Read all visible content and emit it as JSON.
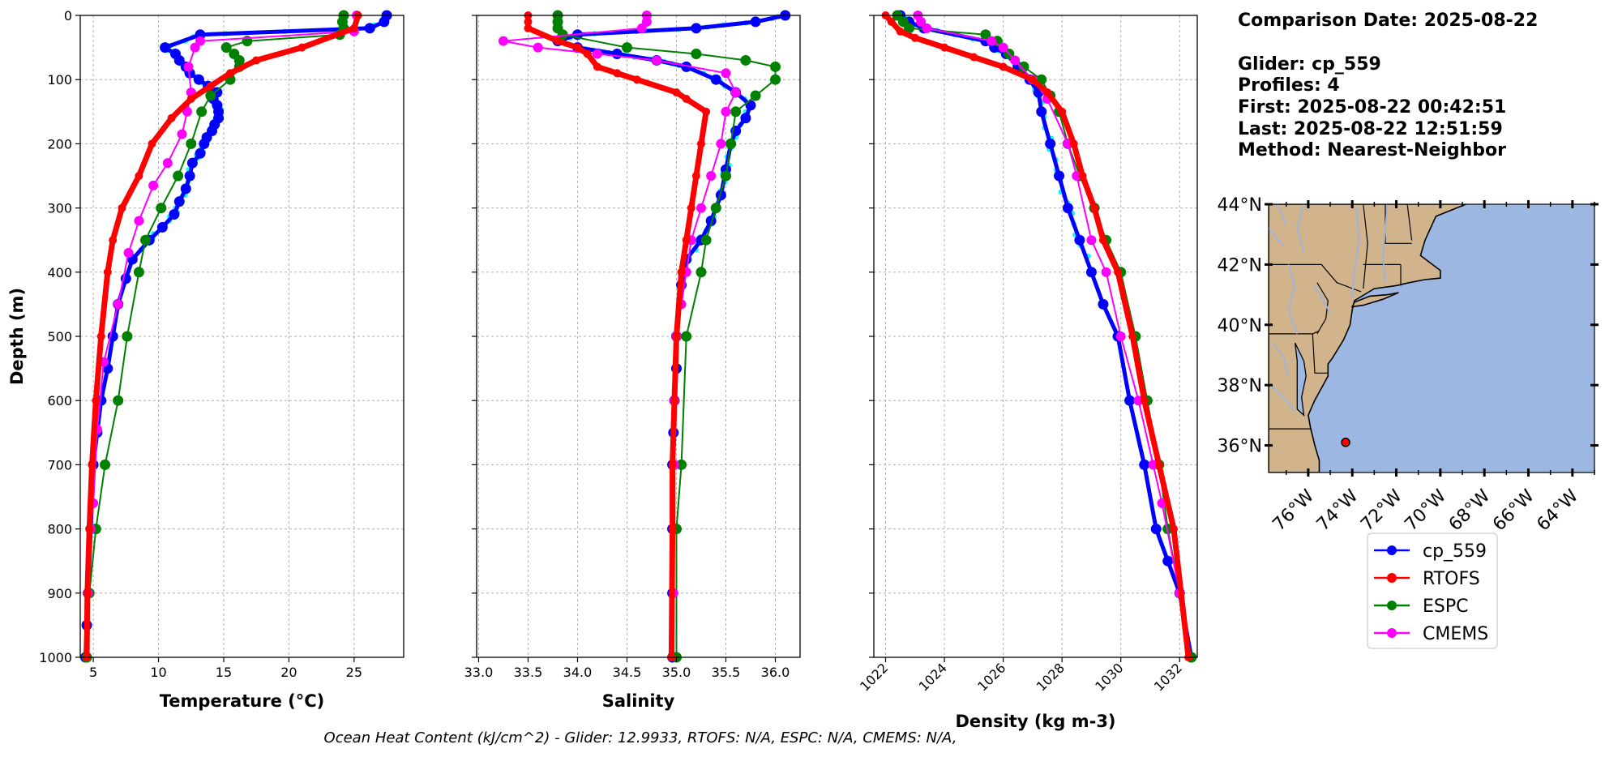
{
  "info": {
    "comparison_date": "Comparison Date: 2025-08-22",
    "glider": "Glider: cp_559",
    "profiles": "Profiles: 4",
    "first": "First: 2025-08-22 00:42:51",
    "last": "Last: 2025-08-22 12:51:59",
    "method": "Method: Nearest-Neighbor"
  },
  "footer": "Ocean Heat Content (kJ/cm^2) - Glider: 12.9933,  RTOFS: N/A,  ESPC: N/A,  CMEMS: N/A,",
  "colors": {
    "cp_559": "#0000ff",
    "RTOFS": "#ff0000",
    "ESPC": "#008000",
    "CMEMS": "#ff00ff",
    "glider_raw": "#00ffff",
    "land": "#d2b48c",
    "ocean": "#9cb8e2",
    "rivers": "#9fb4d6"
  },
  "chart_data": [
    {
      "type": "line",
      "xlabel": "Temperature (°C)",
      "ylabel": "Depth (m)",
      "xlim": [
        4,
        28.8
      ],
      "ylim": [
        1000,
        0
      ],
      "xticks": [
        5,
        10,
        15,
        20,
        25
      ],
      "yticks": [
        0,
        100,
        200,
        300,
        400,
        500,
        600,
        700,
        800,
        900,
        1000
      ],
      "grid": true,
      "series": [
        {
          "name": "cp_559",
          "x": [
            27.5,
            27.3,
            26.2,
            13.2,
            10.5,
            11.3,
            11.6,
            12.1,
            12.4,
            13.1,
            13.8,
            14.5,
            14.2,
            14.5,
            14.6,
            14.6,
            14.3,
            14.1,
            13.7,
            13.5,
            13.2,
            12.6,
            12.4,
            12.1,
            11.6,
            11.2,
            10.3,
            9.3,
            8.0,
            7.5,
            6.9,
            6.5,
            6.1,
            5.6,
            5.3,
            5.0,
            4.8,
            4.6,
            4.5,
            4.4
          ],
          "y": [
            0,
            10,
            20,
            30,
            50,
            60,
            70,
            80,
            90,
            100,
            110,
            120,
            130,
            140,
            150,
            160,
            170,
            180,
            190,
            200,
            215,
            230,
            250,
            270,
            290,
            310,
            330,
            350,
            380,
            410,
            450,
            500,
            550,
            600,
            650,
            700,
            800,
            900,
            950,
            1000
          ]
        },
        {
          "name": "RTOFS",
          "x": [
            25.3,
            25.0,
            21.0,
            17.5,
            15.5,
            14.0,
            12.5,
            11.0,
            9.5,
            8.5,
            7.2,
            6.5,
            6.1,
            5.6,
            5.2,
            4.9,
            4.7,
            4.55,
            4.5
          ],
          "y": [
            0,
            20,
            50,
            70,
            90,
            110,
            130,
            160,
            200,
            250,
            300,
            350,
            400,
            500,
            600,
            700,
            800,
            900,
            1000
          ]
        },
        {
          "name": "ESPC",
          "x": [
            24.2,
            24.1,
            24.2,
            23.9,
            16.8,
            15.2,
            15.8,
            16.2,
            16.2,
            15.5,
            14.0,
            13.3,
            12.5,
            11.5,
            10.2,
            9.0,
            8.5,
            7.6,
            6.9,
            5.9,
            5.2,
            4.7,
            4.5
          ],
          "y": [
            0,
            10,
            20,
            30,
            40,
            50,
            60,
            70,
            80,
            100,
            125,
            150,
            200,
            250,
            300,
            350,
            400,
            500,
            600,
            700,
            800,
            900,
            1000
          ]
        },
        {
          "name": "CMEMS",
          "x": [
            25.2,
            25.0,
            13.2,
            12.8,
            12.3,
            12.5,
            12.2,
            11.8,
            10.7,
            9.6,
            8.5,
            7.7,
            6.9,
            5.8,
            5.3,
            5.0,
            4.8,
            4.6
          ],
          "y": [
            0,
            25,
            40,
            50,
            80,
            120,
            150,
            185,
            230,
            265,
            320,
            370,
            450,
            540,
            645,
            760,
            800,
            900
          ]
        }
      ]
    },
    {
      "type": "line",
      "xlabel": "Salinity",
      "xlim": [
        32.98,
        36.25
      ],
      "ylim": [
        1000,
        0
      ],
      "xticks": [
        33.0,
        33.5,
        34.0,
        34.5,
        35.0,
        35.5,
        36.0
      ],
      "grid": true,
      "series": [
        {
          "name": "cp_559",
          "x": [
            36.1,
            35.8,
            35.2,
            34.0,
            33.8,
            34.0,
            34.4,
            34.8,
            35.1,
            35.4,
            35.6,
            35.75,
            35.7,
            35.6,
            35.55,
            35.5,
            35.45,
            35.35,
            35.25,
            35.1,
            35.05,
            35.0,
            35.0,
            34.98,
            34.97,
            34.96,
            34.96,
            34.96,
            34.96
          ],
          "y": [
            0,
            10,
            20,
            30,
            40,
            50,
            60,
            70,
            80,
            100,
            120,
            140,
            160,
            180,
            200,
            240,
            280,
            320,
            350,
            380,
            420,
            500,
            550,
            600,
            650,
            700,
            800,
            900,
            1000
          ]
        },
        {
          "name": "RTOFS",
          "x": [
            33.5,
            33.5,
            33.5,
            33.8,
            34.0,
            34.1,
            34.2,
            34.4,
            34.6,
            35.0,
            35.1,
            35.3,
            35.25,
            35.2,
            35.15,
            35.1,
            35.05,
            35.0,
            34.98,
            34.96,
            34.96,
            34.95
          ],
          "y": [
            0,
            10,
            20,
            40,
            50,
            60,
            80,
            90,
            100,
            120,
            130,
            150,
            200,
            250,
            300,
            350,
            400,
            500,
            600,
            700,
            800,
            1000
          ]
        },
        {
          "name": "ESPC",
          "x": [
            33.8,
            33.8,
            33.8,
            33.85,
            34.5,
            35.2,
            35.7,
            36.0,
            36.0,
            35.8,
            35.6,
            35.55,
            35.5,
            35.4,
            35.3,
            35.25,
            35.1,
            35.05,
            35.0,
            35.0
          ],
          "y": [
            0,
            10,
            20,
            30,
            50,
            60,
            70,
            80,
            100,
            125,
            150,
            200,
            250,
            300,
            350,
            400,
            500,
            700,
            800,
            1000
          ]
        },
        {
          "name": "CMEMS",
          "x": [
            34.7,
            34.7,
            34.65,
            33.25,
            33.6,
            34.2,
            34.8,
            35.5,
            35.6,
            35.5,
            35.45,
            35.35,
            35.25,
            35.15,
            35.1,
            35.05,
            35.0,
            34.98,
            34.98,
            34.97
          ],
          "y": [
            0,
            10,
            20,
            40,
            50,
            60,
            70,
            90,
            120,
            150,
            200,
            250,
            300,
            350,
            400,
            450,
            500,
            600,
            700,
            900
          ]
        }
      ]
    },
    {
      "type": "line",
      "xlabel": "Density (kg m-3)",
      "xlim": [
        1021.6,
        1032.6
      ],
      "ylim": [
        1000,
        0
      ],
      "xticks": [
        1022,
        1024,
        1026,
        1028,
        1030,
        1032
      ],
      "grid": true,
      "series": [
        {
          "name": "cp_559",
          "x": [
            1022.5,
            1022.8,
            1023.3,
            1025.4,
            1025.7,
            1026.1,
            1026.5,
            1026.9,
            1027.2,
            1027.3,
            1027.6,
            1027.9,
            1028.2,
            1028.6,
            1029.0,
            1029.4,
            1029.9,
            1030.3,
            1030.8,
            1031.2,
            1031.6,
            1032.0,
            1032.4
          ],
          "y": [
            0,
            10,
            20,
            40,
            50,
            60,
            80,
            100,
            120,
            150,
            200,
            250,
            300,
            350,
            400,
            450,
            500,
            600,
            700,
            800,
            850,
            900,
            1000
          ]
        },
        {
          "name": "RTOFS",
          "x": [
            1022.0,
            1022.2,
            1022.5,
            1023.0,
            1024.0,
            1025.0,
            1026.0,
            1027.0,
            1027.5,
            1028.0,
            1028.4,
            1028.7,
            1029.1,
            1029.4,
            1029.9,
            1030.4,
            1030.8,
            1031.3,
            1031.8,
            1032.3
          ],
          "y": [
            0,
            10,
            25,
            35,
            50,
            65,
            80,
            100,
            120,
            150,
            200,
            250,
            300,
            350,
            400,
            500,
            600,
            700,
            800,
            1000
          ]
        },
        {
          "name": "ESPC",
          "x": [
            1022.4,
            1022.6,
            1022.8,
            1025.4,
            1025.8,
            1026.2,
            1026.7,
            1027.3,
            1027.6,
            1027.9,
            1028.2,
            1028.6,
            1029.1,
            1029.5,
            1030.0,
            1030.5,
            1030.9,
            1031.3,
            1031.6,
            1032.4
          ],
          "y": [
            0,
            10,
            20,
            30,
            40,
            60,
            80,
            100,
            125,
            150,
            200,
            250,
            300,
            350,
            400,
            500,
            600,
            700,
            800,
            1000
          ]
        },
        {
          "name": "CMEMS",
          "x": [
            1023.1,
            1023.2,
            1023.4,
            1025.6,
            1026.0,
            1026.4,
            1027.0,
            1027.5,
            1028.2,
            1028.5,
            1029.0,
            1029.5,
            1030.0,
            1030.6,
            1031.1,
            1031.4,
            1032.0
          ],
          "y": [
            0,
            10,
            20,
            40,
            50,
            70,
            100,
            130,
            200,
            250,
            350,
            400,
            500,
            600,
            700,
            760,
            900
          ]
        }
      ]
    }
  ],
  "map": {
    "lon_ticks": [
      "76°W",
      "74°W",
      "72°W",
      "70°W",
      "68°W",
      "66°W",
      "64°W"
    ],
    "lat_ticks": [
      "44°N",
      "42°N",
      "40°N",
      "38°N",
      "36°N"
    ],
    "lon_range": [
      -77.8,
      -63.0
    ],
    "lat_range": [
      35.1,
      44.0
    ],
    "glider_position": {
      "lon": -74.3,
      "lat": 36.1
    }
  },
  "legend": {
    "placement": "bottom-right, below map",
    "entries": [
      "cp_559",
      "RTOFS",
      "ESPC",
      "CMEMS"
    ]
  }
}
